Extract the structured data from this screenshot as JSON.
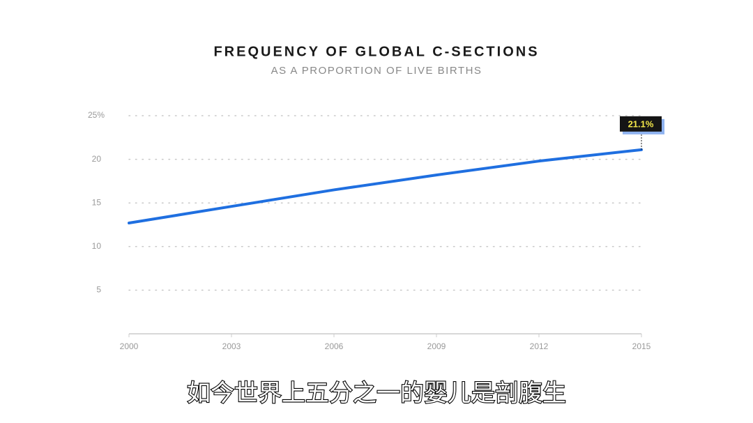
{
  "chart_data": {
    "type": "line",
    "title": "FREQUENCY OF GLOBAL C-SECTIONS",
    "subtitle": "AS A PROPORTION OF LIVE BIRTHS",
    "caption": "如今世界上五分之一的婴儿是剖腹生",
    "x": [
      2000,
      2003,
      2006,
      2009,
      2012,
      2015
    ],
    "series": [
      {
        "name": "C-sections",
        "color": "#1f6fe0",
        "values": [
          12.7,
          14.6,
          16.5,
          18.2,
          19.8,
          21.1
        ],
        "value_labels": [
          null,
          null,
          null,
          null,
          null,
          "21.1%"
        ]
      }
    ],
    "xlim": [
      2000,
      2015
    ],
    "xticks": [
      2000,
      2003,
      2006,
      2009,
      2012,
      2015
    ],
    "ylim": [
      0,
      25
    ],
    "yticks": [
      5,
      10,
      15,
      20,
      {
        "value": 25,
        "label": "25%"
      }
    ],
    "grid": true
  }
}
